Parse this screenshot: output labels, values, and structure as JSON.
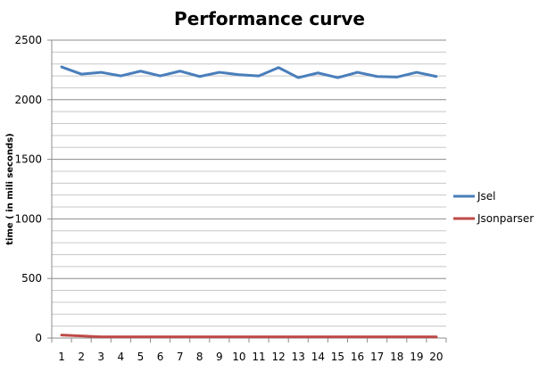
{
  "chart_data": {
    "type": "line",
    "title": "Performance curve",
    "xlabel": "",
    "ylabel": "time ( in mili seconds)",
    "x": [
      1,
      2,
      3,
      4,
      5,
      6,
      7,
      8,
      9,
      10,
      11,
      12,
      13,
      14,
      15,
      16,
      17,
      18,
      19,
      20
    ],
    "ylim": [
      0,
      2500
    ],
    "yticks": [
      0,
      500,
      1000,
      1500,
      2000,
      2500
    ],
    "minor_grid_step": 100,
    "grid": true,
    "legend_position": "right",
    "series": [
      {
        "name": "Jsel",
        "color": "#4A7EBB",
        "values": [
          2275,
          2215,
          2230,
          2200,
          2240,
          2200,
          2240,
          2195,
          2230,
          2210,
          2200,
          2270,
          2185,
          2225,
          2185,
          2230,
          2195,
          2190,
          2230,
          2195
        ]
      },
      {
        "name": "Jsonparser",
        "color": "#BE4B48",
        "values": [
          25,
          18,
          10,
          10,
          10,
          10,
          10,
          10,
          10,
          10,
          10,
          10,
          10,
          10,
          10,
          10,
          10,
          10,
          10,
          10
        ]
      }
    ]
  }
}
